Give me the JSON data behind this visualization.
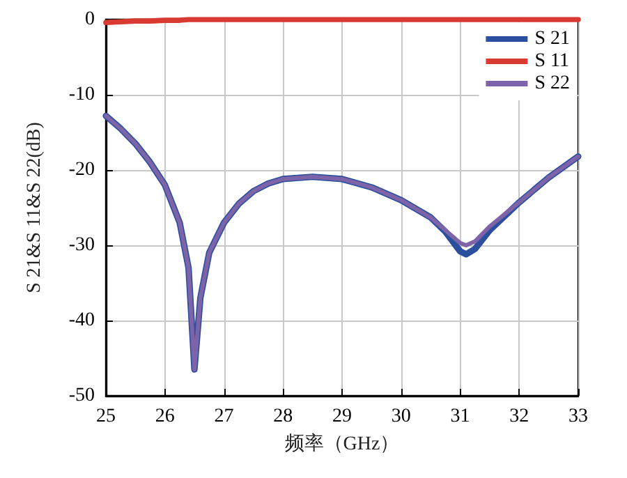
{
  "chart_data": {
    "type": "line",
    "xlabel": "频率（GHz）",
    "ylabel": "S 21&S 11&S 22(dB)",
    "x": [
      25,
      25.25,
      25.5,
      25.75,
      26,
      26.25,
      26.4,
      26.5,
      26.6,
      26.75,
      27,
      27.25,
      27.5,
      27.75,
      28,
      28.5,
      29,
      29.5,
      30,
      30.5,
      30.75,
      31,
      31.1,
      31.25,
      31.5,
      32,
      32.5,
      33
    ],
    "series": [
      {
        "name": "S 21",
        "color": "#2b4f9e",
        "values": [
          -12.8,
          -14.5,
          -16.5,
          -19,
          -22,
          -27,
          -33,
          -46.5,
          -37,
          -31,
          -27,
          -24.5,
          -22.8,
          -21.8,
          -21.2,
          -20.9,
          -21.2,
          -22.3,
          -24,
          -26.3,
          -28.2,
          -30.8,
          -31.2,
          -30.5,
          -28,
          -24.3,
          -21,
          -18.2
        ]
      },
      {
        "name": "S 11",
        "color": "#d93a32",
        "values": [
          -0.4,
          -0.3,
          -0.2,
          -0.2,
          -0.1,
          -0.1,
          0,
          0,
          0,
          0,
          0,
          0,
          0,
          0,
          0,
          0,
          0,
          0,
          0,
          0,
          0,
          0,
          0,
          0,
          0,
          0,
          0,
          0
        ]
      },
      {
        "name": "S 22",
        "color": "#7d63a8",
        "values": [
          -12.8,
          -14.5,
          -16.5,
          -19,
          -22,
          -27,
          -33,
          -46.5,
          -37,
          -31,
          -27,
          -24.5,
          -22.8,
          -21.8,
          -21.2,
          -20.9,
          -21.2,
          -22.3,
          -24,
          -26.3,
          -28,
          -29.7,
          -30,
          -29.5,
          -27.5,
          -24.3,
          -21,
          -18.2
        ]
      }
    ],
    "xlim": [
      25,
      33
    ],
    "xticks": [
      25,
      26,
      27,
      28,
      29,
      30,
      31,
      32,
      33
    ],
    "ylim": [
      -50,
      0
    ],
    "yticks": [
      -50,
      -40,
      -30,
      -20,
      -10,
      0
    ],
    "grid": true,
    "legend": "top right",
    "marker": "none",
    "line_style": "solid"
  }
}
